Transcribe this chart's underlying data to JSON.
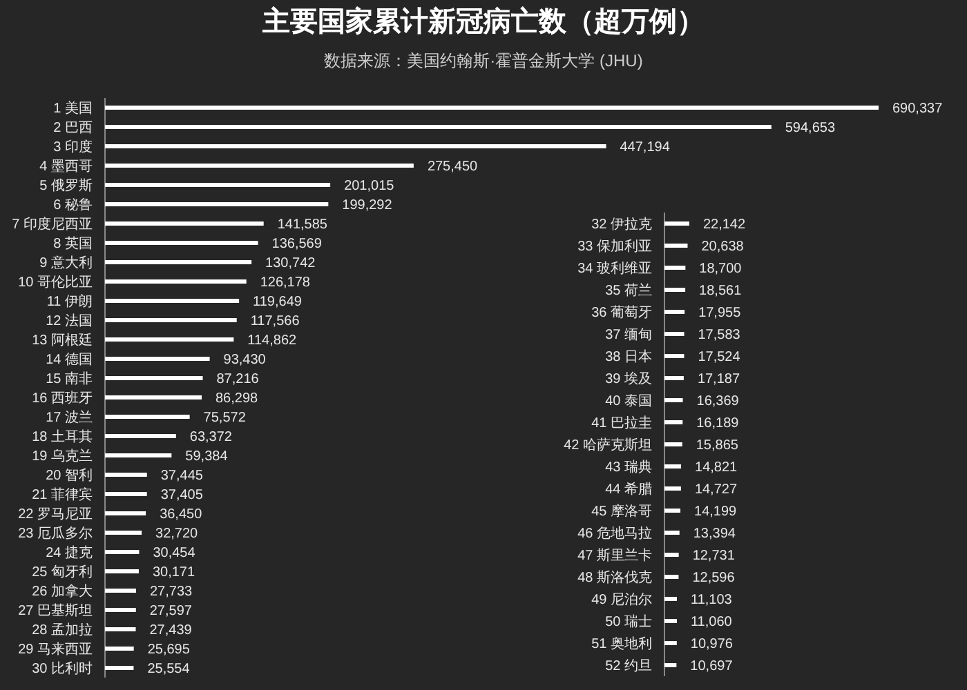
{
  "chart_data": [
    {
      "type": "bar",
      "orientation": "horizontal",
      "title": "主要国家累计新冠病亡数（超万例）",
      "subtitle": "数据来源：美国约翰斯·霍普金斯大学 (JHU)",
      "color": "#ffffff",
      "categories": [
        "1 美国",
        "2 巴西",
        "3 印度",
        "4 墨西哥",
        "5 俄罗斯",
        "6 秘鲁",
        "7 印度尼西亚",
        "8 英国",
        "9 意大利",
        "10 哥伦比亚",
        "11 伊朗",
        "12 法国",
        "13 阿根廷",
        "14 德国",
        "15 南非",
        "16 西班牙",
        "17 波兰",
        "18 土耳其",
        "19 乌克兰",
        "20 智利",
        "21 菲律宾",
        "22 罗马尼亚",
        "23 厄瓜多尔",
        "24 捷克",
        "25 匈牙利",
        "26 加拿大",
        "27 巴基斯坦",
        "28 孟加拉",
        "29 马来西亚",
        "30 比利时"
      ],
      "values": [
        690337,
        594653,
        447194,
        275450,
        201015,
        199292,
        141585,
        136569,
        130742,
        126178,
        119649,
        117566,
        114862,
        93430,
        87216,
        86298,
        75572,
        63372,
        59384,
        37445,
        37405,
        36450,
        32720,
        30454,
        30171,
        27733,
        27597,
        27439,
        25695,
        25554
      ],
      "value_labels": [
        "690,337",
        "594,653",
        "447,194",
        "275,450",
        "201,015",
        "199,292",
        "141,585",
        "136,569",
        "130,742",
        "126,178",
        "119,649",
        "117,566",
        "114,862",
        "93,430",
        "87,216",
        "86,298",
        "75,572",
        "63,372",
        "59,384",
        "37,445",
        "37,405",
        "36,450",
        "32,720",
        "30,454",
        "30,171",
        "27,733",
        "27,597",
        "27,439",
        "25,695",
        "25,554"
      ]
    },
    {
      "type": "bar",
      "orientation": "horizontal",
      "color": "#ffffff",
      "categories": [
        "32 伊拉克",
        "33 保加利亚",
        "34 玻利维亚",
        "35 荷兰",
        "36 葡萄牙",
        "37 缅甸",
        "38 日本",
        "39 埃及",
        "40 泰国",
        "41 巴拉圭",
        "42 哈萨克斯坦",
        "43 瑞典",
        "44 希腊",
        "45 摩洛哥",
        "46 危地马拉",
        "47 斯里兰卡",
        "48 斯洛伐克",
        "49 尼泊尔",
        "50 瑞士",
        "51 奥地利",
        "52 约旦"
      ],
      "values": [
        22142,
        20638,
        18700,
        18561,
        17955,
        17583,
        17524,
        17187,
        16369,
        16189,
        15865,
        14821,
        14727,
        14199,
        13394,
        12731,
        12596,
        11103,
        11060,
        10976,
        10697
      ],
      "value_labels": [
        "22,142",
        "20,638",
        "18,700",
        "18,561",
        "17,955",
        "17,583",
        "17,524",
        "17,187",
        "16,369",
        "16,189",
        "15,865",
        "14,821",
        "14,727",
        "14,199",
        "13,394",
        "12,731",
        "12,596",
        "11,103",
        "11,060",
        "10,976",
        "10,697"
      ]
    }
  ]
}
